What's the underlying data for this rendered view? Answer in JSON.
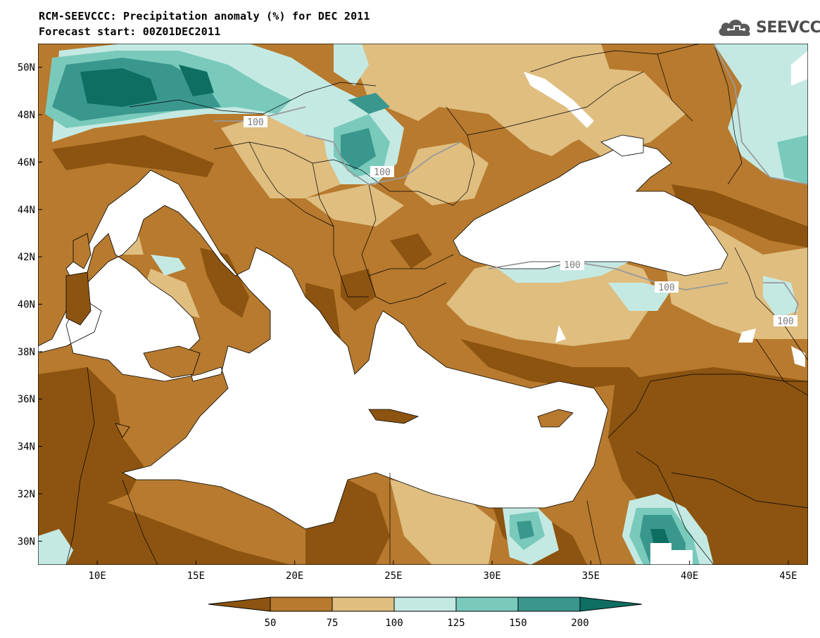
{
  "title_line1": "RCM-SEEVCCC: Precipitation anomaly (%) for DEC 2011",
  "title_line2": "Forecast start: 00Z01DEC2011",
  "logo_text": "SEEVCCC",
  "logo_icon": "cloud-icon",
  "map": {
    "lon_ticks": [
      "10E",
      "15E",
      "20E",
      "25E",
      "30E",
      "35E",
      "40E",
      "45E"
    ],
    "lat_ticks": [
      "50N",
      "48N",
      "46N",
      "44N",
      "42N",
      "40N",
      "38N",
      "36N",
      "34N",
      "32N",
      "30N"
    ],
    "contour_labels": [
      "100",
      "100",
      "100",
      "100",
      "100"
    ],
    "lon_range": [
      7,
      46
    ],
    "lat_range": [
      29,
      51
    ]
  },
  "legend": {
    "levels": [
      "50",
      "75",
      "100",
      "125",
      "150",
      "200"
    ],
    "colors": {
      "lt50": "#8c5410",
      "50_75": "#b77a2e",
      "75_100": "#dfbe80",
      "100_125": "#c4e9e3",
      "125_150": "#79cabb",
      "150_200": "#3a978e",
      "gt200": "#0e6e62"
    }
  }
}
